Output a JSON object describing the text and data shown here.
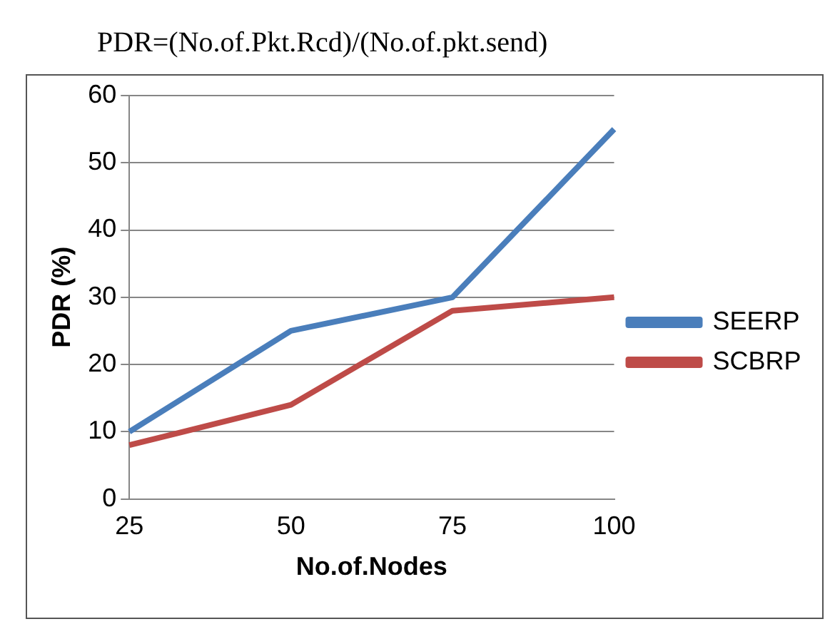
{
  "chart_data": {
    "type": "line",
    "title": "PDR=(No.of.Pkt.Rcd)/(No.of.pkt.send)",
    "xlabel": "No.of.Nodes",
    "ylabel": "PDR (%)",
    "categories": [
      "25",
      "50",
      "75",
      "100"
    ],
    "series": [
      {
        "name": "SEERP",
        "color": "#4a7ebb",
        "values": [
          10,
          25,
          30,
          55
        ]
      },
      {
        "name": "SCBRP",
        "color": "#be4b48",
        "values": [
          8,
          14,
          28,
          30
        ]
      }
    ],
    "ylim": [
      0,
      60
    ],
    "yticks": [
      0,
      10,
      20,
      30,
      40,
      50,
      60
    ],
    "grid": "y",
    "legend": "right",
    "marker": "none"
  }
}
